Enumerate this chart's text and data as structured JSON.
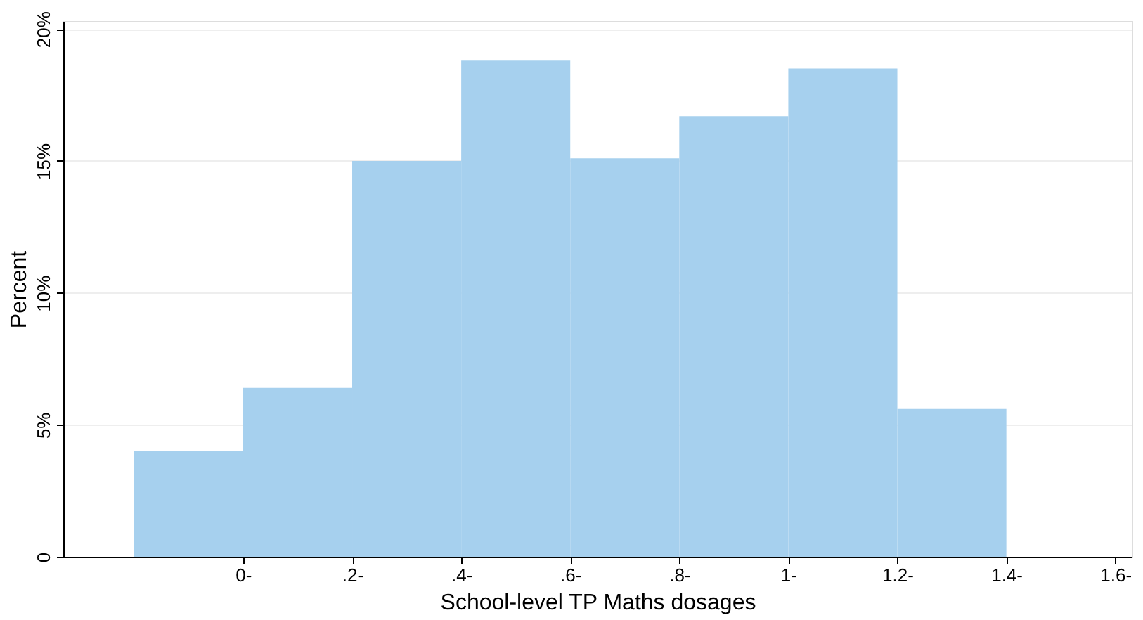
{
  "chart_data": {
    "type": "histogram",
    "xlabel": "School-level TP Maths dosages",
    "ylabel": "Percent",
    "bins": [
      -0.2,
      0,
      0.2,
      0.4,
      0.6,
      0.8,
      1.0,
      1.2,
      1.4
    ],
    "values": [
      4.0,
      6.4,
      15.0,
      18.8,
      15.1,
      16.7,
      18.5,
      5.6
    ],
    "color": "#a6d0ee",
    "xlim": [
      -0.33,
      1.63
    ],
    "xticks": [
      {
        "value": 0,
        "label": "0-"
      },
      {
        "value": 0.2,
        "label": ".2-"
      },
      {
        "value": 0.4,
        "label": ".4-"
      },
      {
        "value": 0.6,
        "label": ".6-"
      },
      {
        "value": 0.8,
        "label": ".8-"
      },
      {
        "value": 1.0,
        "label": "1-"
      },
      {
        "value": 1.2,
        "label": "1.2-"
      },
      {
        "value": 1.4,
        "label": "1.4-"
      },
      {
        "value": 1.6,
        "label": "1.6-"
      }
    ],
    "ylim": [
      0,
      20.3
    ],
    "yticks": [
      {
        "value": 0,
        "label": "0"
      },
      {
        "value": 5,
        "label": "5%"
      },
      {
        "value": 10,
        "label": "10%"
      },
      {
        "value": 15,
        "label": "15%"
      },
      {
        "value": 20,
        "label": "20%"
      }
    ],
    "grid": "y"
  }
}
